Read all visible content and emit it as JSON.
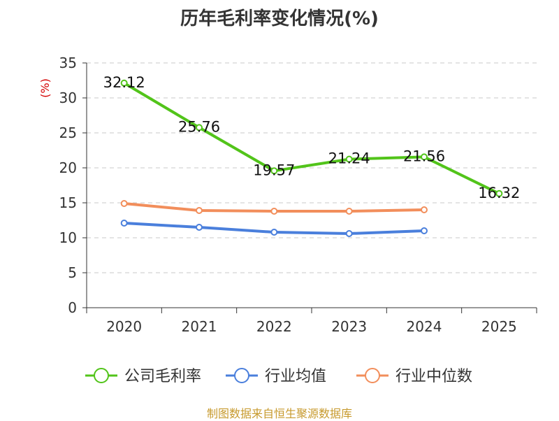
{
  "chart_data": {
    "type": "line",
    "title": "历年毛利率变化情况(%)",
    "ylabel": "(%)",
    "xlabel": "",
    "categories": [
      "2020",
      "2021",
      "2022",
      "2023",
      "2024",
      "2025"
    ],
    "ylim": [
      0,
      35
    ],
    "yticks": [
      0,
      5,
      10,
      15,
      20,
      25,
      30,
      35
    ],
    "grid": true,
    "legend_position": "bottom",
    "series": [
      {
        "name": "公司毛利率",
        "color": "#52c41a",
        "labeled": true,
        "values": [
          32.12,
          25.76,
          19.57,
          21.24,
          21.56,
          16.32
        ]
      },
      {
        "name": "行业均值",
        "color": "#4a7fdc",
        "labeled": false,
        "values": [
          12.1,
          11.5,
          10.8,
          10.6,
          11.0,
          null
        ]
      },
      {
        "name": "行业中位数",
        "color": "#f28e5b",
        "labeled": false,
        "values": [
          14.9,
          13.9,
          13.8,
          13.8,
          14.0,
          null
        ]
      }
    ]
  },
  "source": "制图数据来自恒生聚源数据库"
}
